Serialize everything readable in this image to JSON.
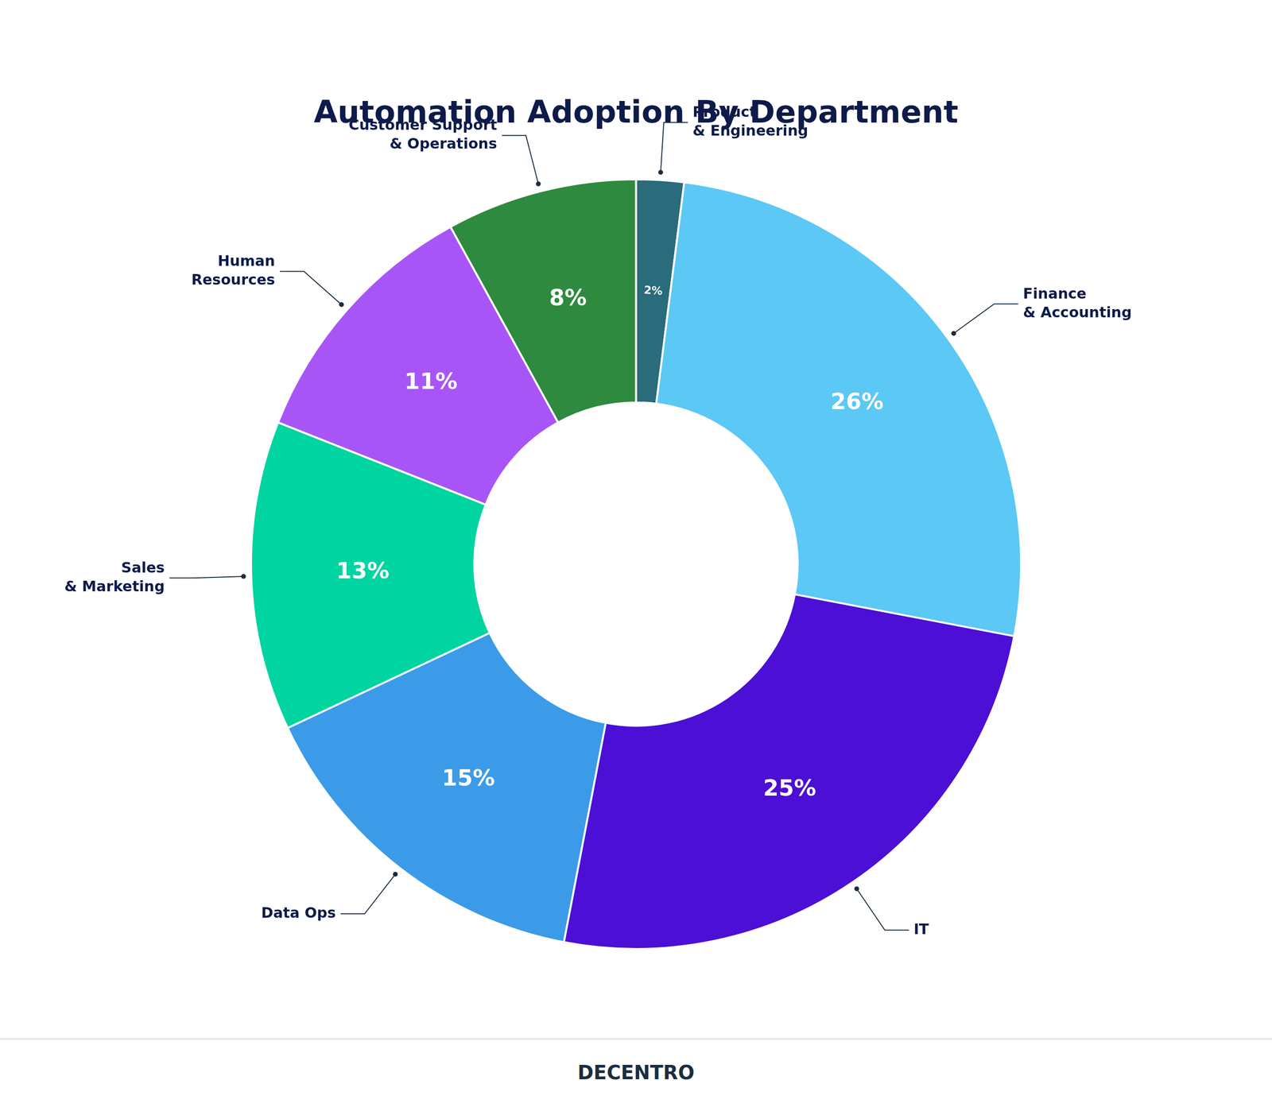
{
  "chart_data": {
    "type": "doughnut",
    "title": "Automation Adoption By Department",
    "categories": [
      "Product\n& Engineering",
      "Finance\n& Accounting",
      "IT",
      "Data Ops",
      "Sales\n& Marketing",
      "Human\nResources",
      "Customer Support\n& Operations"
    ],
    "values": [
      2,
      26,
      25,
      15,
      13,
      11,
      8
    ],
    "value_labels": [
      "2%",
      "26%",
      "25%",
      "15%",
      "13%",
      "11%",
      "8%"
    ],
    "colors": [
      "#2a6b7c",
      "#5bc8f5",
      "#4b0fd5",
      "#3b9be8",
      "#00d4a0",
      "#a855f7",
      "#2d8a3e"
    ],
    "data_labels": true,
    "annotations": [
      "DECENTRO"
    ]
  }
}
